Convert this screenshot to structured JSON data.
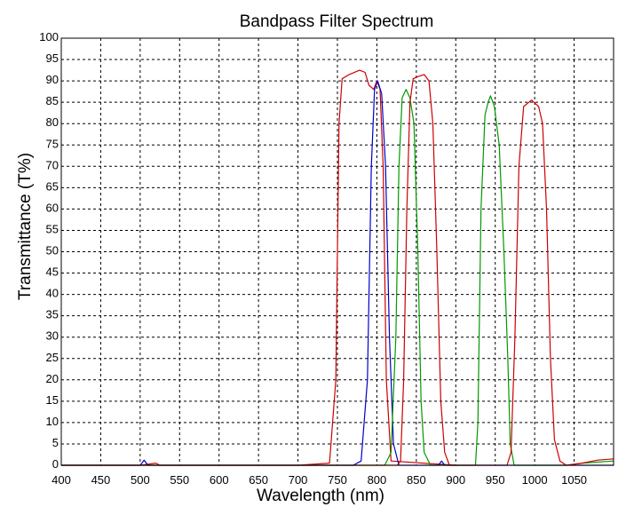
{
  "chart_data": {
    "type": "line",
    "title": "Bandpass Filter Spectrum",
    "xlabel": "Wavelength (nm)",
    "ylabel": "Transmittance (T%)",
    "xlim": [
      400,
      1100
    ],
    "ylim": [
      0,
      100
    ],
    "xticks": [
      400,
      450,
      500,
      550,
      600,
      650,
      700,
      750,
      800,
      850,
      900,
      950,
      1000,
      1050
    ],
    "yticks": [
      0,
      5,
      10,
      15,
      20,
      25,
      30,
      35,
      40,
      45,
      50,
      55,
      60,
      65,
      70,
      75,
      80,
      85,
      90,
      95,
      100
    ],
    "grid": true,
    "legend": "none",
    "series": [
      {
        "color": "#cc0000",
        "points": [
          [
            400,
            0
          ],
          [
            500,
            0
          ],
          [
            520,
            0.5
          ],
          [
            525,
            0
          ],
          [
            700,
            0
          ],
          [
            740,
            0.5
          ],
          [
            748,
            20
          ],
          [
            752,
            80
          ],
          [
            756,
            90.5
          ],
          [
            765,
            91.5
          ],
          [
            778,
            92.5
          ],
          [
            785,
            92
          ],
          [
            790,
            89
          ],
          [
            796,
            88
          ],
          [
            800,
            90
          ],
          [
            804,
            88
          ],
          [
            808,
            70
          ],
          [
            812,
            20
          ],
          [
            818,
            1
          ],
          [
            900,
            0
          ]
        ]
      },
      {
        "color": "#0000cc",
        "points": [
          [
            400,
            0
          ],
          [
            500,
            0
          ],
          [
            505,
            1.2
          ],
          [
            510,
            0
          ],
          [
            770,
            0
          ],
          [
            780,
            1
          ],
          [
            788,
            20
          ],
          [
            793,
            70
          ],
          [
            797,
            88
          ],
          [
            801,
            90
          ],
          [
            806,
            87
          ],
          [
            811,
            70
          ],
          [
            816,
            30
          ],
          [
            821,
            5
          ],
          [
            828,
            0
          ],
          [
            878,
            0
          ],
          [
            882,
            1
          ],
          [
            886,
            0
          ],
          [
            1100,
            0
          ]
        ]
      },
      {
        "color": "#009900",
        "points": [
          [
            400,
            0
          ],
          [
            810,
            0
          ],
          [
            818,
            3
          ],
          [
            824,
            30
          ],
          [
            828,
            70
          ],
          [
            832,
            86
          ],
          [
            837,
            88
          ],
          [
            842,
            86
          ],
          [
            847,
            80
          ],
          [
            852,
            50
          ],
          [
            856,
            15
          ],
          [
            860,
            3
          ],
          [
            868,
            0
          ],
          [
            925,
            0
          ],
          [
            928,
            10
          ],
          [
            932,
            60
          ],
          [
            937,
            82
          ],
          [
            941,
            85
          ],
          [
            944,
            86.5
          ],
          [
            949,
            84
          ],
          [
            955,
            75
          ],
          [
            961,
            50
          ],
          [
            966,
            25
          ],
          [
            969,
            5
          ],
          [
            974,
            0
          ],
          [
            1040,
            0
          ],
          [
            1060,
            0.5
          ],
          [
            1100,
            1
          ]
        ]
      },
      {
        "color": "#cc0000",
        "points": [
          [
            400,
            0
          ],
          [
            826,
            0
          ],
          [
            830,
            1
          ],
          [
            834,
            20
          ],
          [
            838,
            60
          ],
          [
            842,
            85
          ],
          [
            846,
            90.5
          ],
          [
            852,
            91
          ],
          [
            860,
            91.5
          ],
          [
            866,
            90
          ],
          [
            871,
            80
          ],
          [
            876,
            50
          ],
          [
            881,
            15
          ],
          [
            886,
            3
          ],
          [
            892,
            0
          ],
          [
            965,
            0
          ],
          [
            970,
            3
          ],
          [
            975,
            30
          ],
          [
            980,
            70
          ],
          [
            986,
            84
          ],
          [
            996,
            85.5
          ],
          [
            1005,
            84
          ],
          [
            1010,
            80
          ],
          [
            1015,
            60
          ],
          [
            1020,
            25
          ],
          [
            1025,
            6
          ],
          [
            1032,
            1
          ],
          [
            1040,
            0
          ],
          [
            1060,
            0.5
          ],
          [
            1080,
            1.2
          ],
          [
            1100,
            1.5
          ]
        ]
      }
    ]
  }
}
